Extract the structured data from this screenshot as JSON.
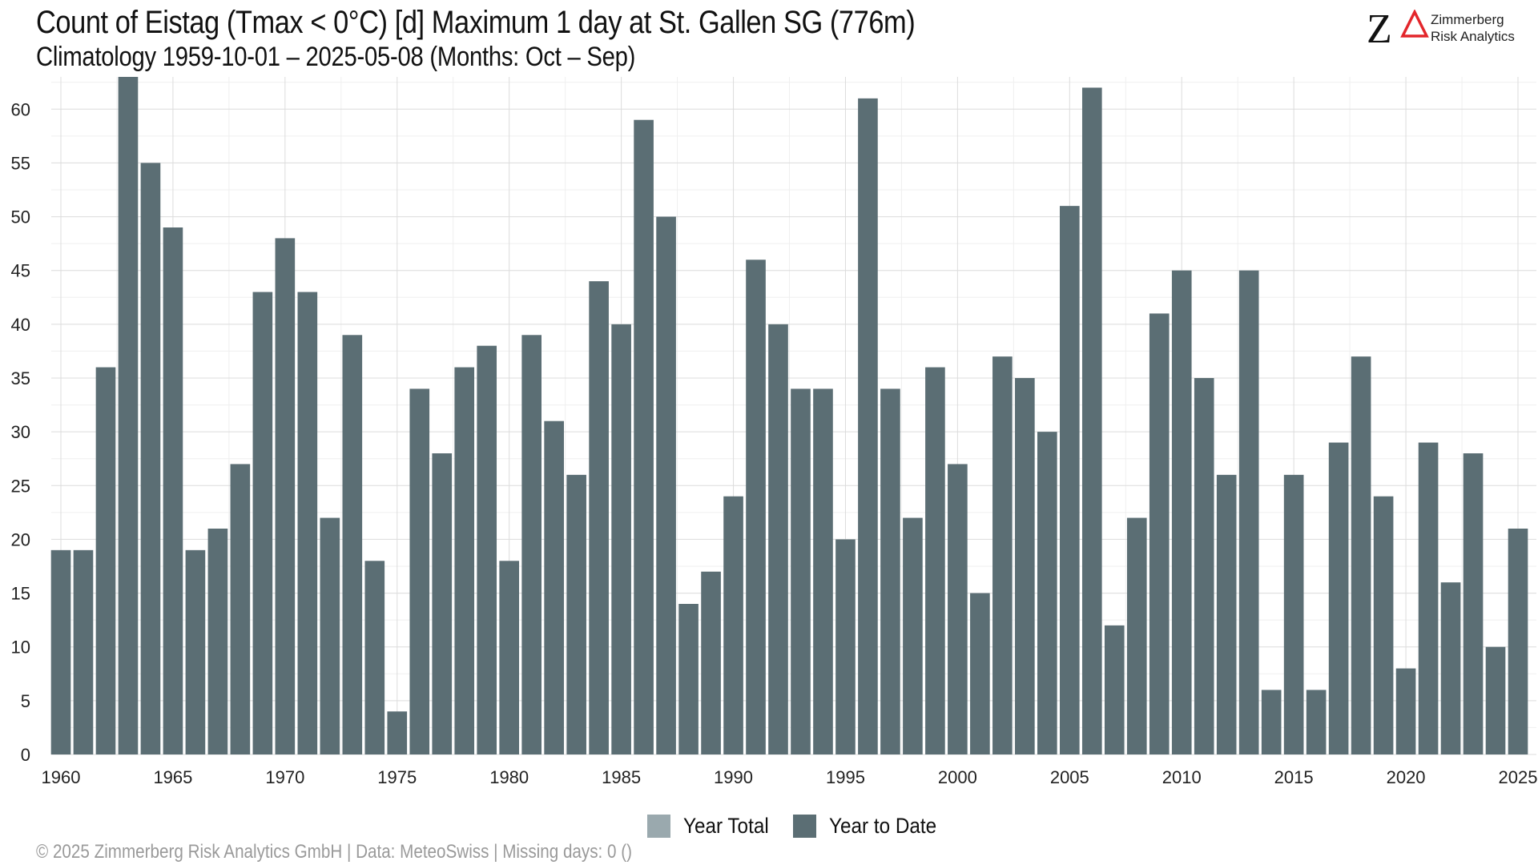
{
  "header": {
    "title": "Count of Eistag (Tmax < 0°C) [d] Maximum 1 day at St. Gallen  SG (776m)",
    "subtitle": "Climatology 1959-10-01 – 2025-05-08 (Months: Oct – Sep)"
  },
  "logo": {
    "mark": "Z",
    "line1": "Zimmerberg",
    "line2": "Risk Analytics",
    "accent_color": "#e3262b"
  },
  "legend": {
    "items": [
      {
        "label": "Year Total",
        "color": "#9aa9ae"
      },
      {
        "label": "Year to Date",
        "color": "#5b6e74"
      }
    ]
  },
  "footer": {
    "text": "©  2025 Zimmerberg Risk Analytics GmbH | Data: MeteoSwiss | Missing days: 0 ()"
  },
  "chart_data": {
    "type": "bar",
    "title": "Count of Eistag (Tmax < 0°C) [d] Maximum 1 day at St. Gallen  SG (776m)",
    "subtitle": "Climatology 1959-10-01 – 2025-05-08 (Months: Oct – Sep)",
    "xlabel": "",
    "ylabel": "",
    "ylim": [
      0,
      63
    ],
    "xlim": [
      1960,
      2025
    ],
    "yticks": [
      0,
      5,
      10,
      15,
      20,
      25,
      30,
      35,
      40,
      45,
      50,
      55,
      60
    ],
    "xticks": [
      1960,
      1965,
      1970,
      1975,
      1980,
      1985,
      1990,
      1995,
      2000,
      2005,
      2010,
      2015,
      2020,
      2025
    ],
    "grid": true,
    "legend_position": "bottom",
    "bar_color": "#5b6e74",
    "series": [
      {
        "name": "Year to Date",
        "x": [
          1960,
          1961,
          1962,
          1963,
          1964,
          1965,
          1966,
          1967,
          1968,
          1969,
          1970,
          1971,
          1972,
          1973,
          1974,
          1975,
          1976,
          1977,
          1978,
          1979,
          1980,
          1981,
          1982,
          1983,
          1984,
          1985,
          1986,
          1987,
          1988,
          1989,
          1990,
          1991,
          1992,
          1993,
          1994,
          1995,
          1996,
          1997,
          1998,
          1999,
          2000,
          2001,
          2002,
          2003,
          2004,
          2005,
          2006,
          2007,
          2008,
          2009,
          2010,
          2011,
          2012,
          2013,
          2014,
          2015,
          2016,
          2017,
          2018,
          2019,
          2020,
          2021,
          2022,
          2023,
          2024,
          2025
        ],
        "values": [
          19,
          19,
          36,
          63,
          55,
          49,
          19,
          21,
          27,
          43,
          48,
          43,
          22,
          39,
          18,
          4,
          34,
          28,
          36,
          38,
          18,
          39,
          31,
          26,
          44,
          40,
          59,
          50,
          14,
          17,
          24,
          46,
          40,
          34,
          34,
          20,
          61,
          34,
          22,
          36,
          27,
          15,
          37,
          35,
          30,
          51,
          62,
          12,
          22,
          41,
          45,
          35,
          26,
          45,
          6,
          26,
          6,
          29,
          37,
          24,
          8,
          29,
          16,
          28,
          10,
          21
        ]
      }
    ]
  }
}
